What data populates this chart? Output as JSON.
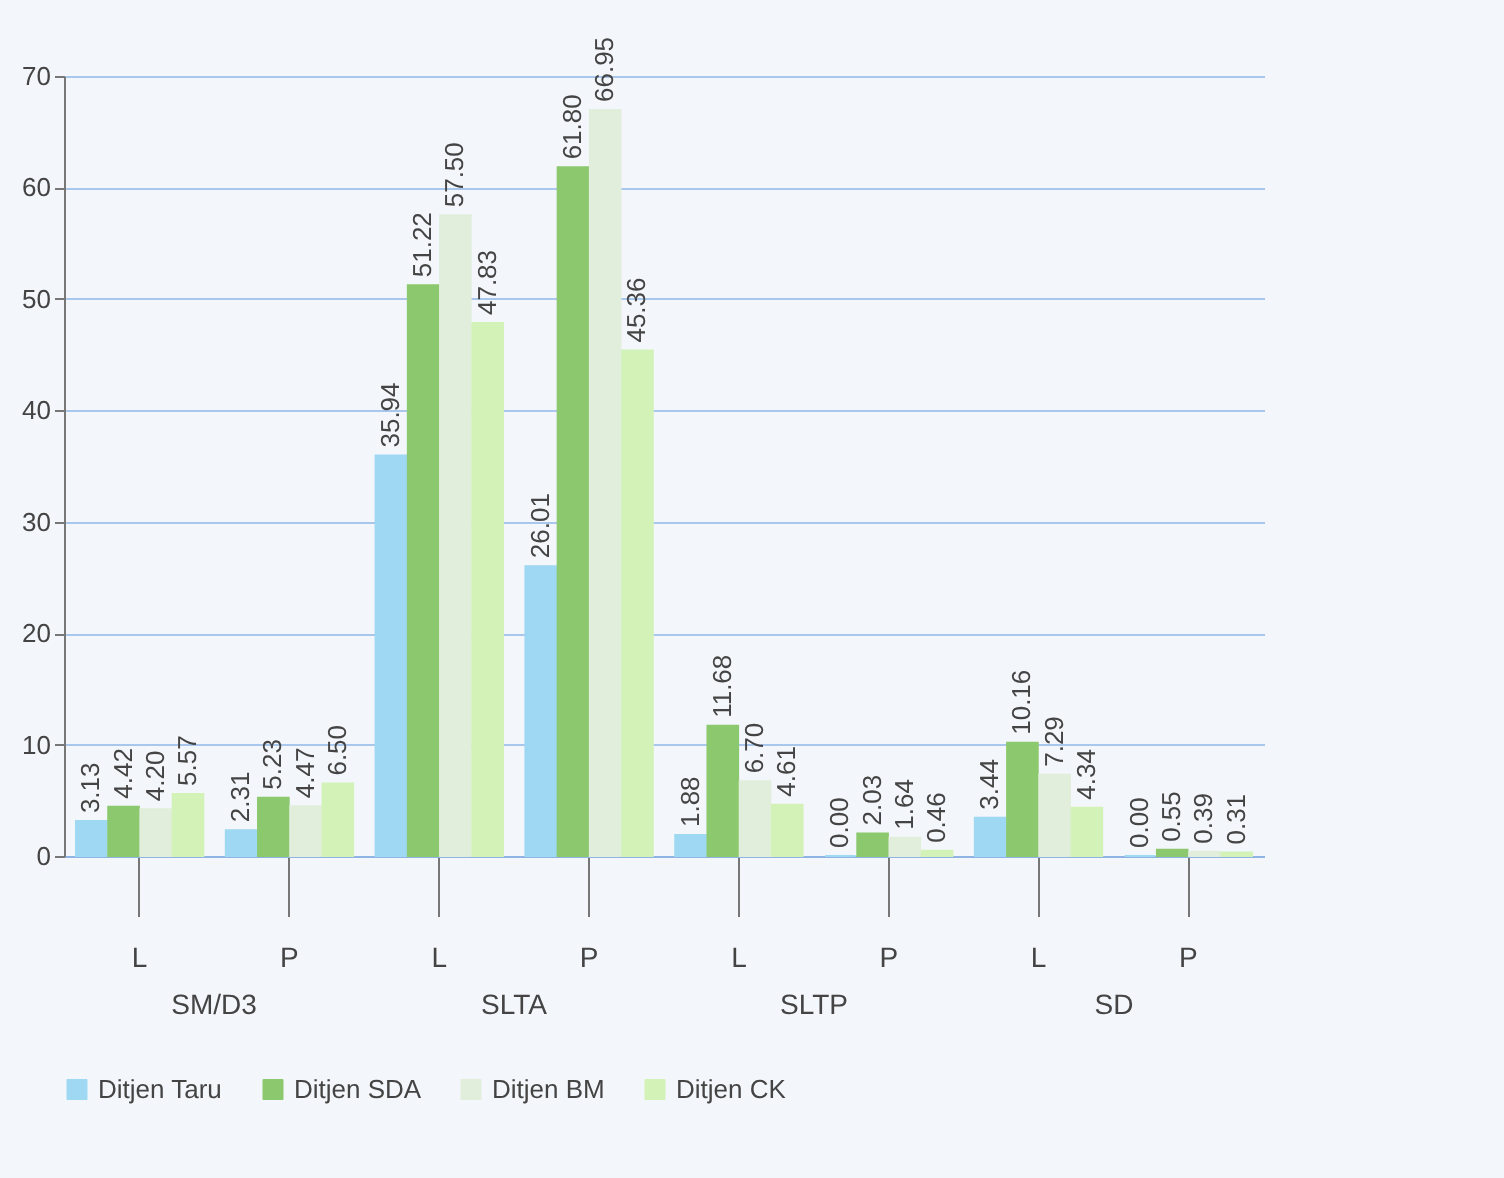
{
  "chart_data": {
    "type": "bar",
    "categories": [
      "L",
      "P",
      "L",
      "P",
      "L",
      "P",
      "L",
      "P"
    ],
    "annotations": [
      "SM/D3",
      "SLTA",
      "SLTP",
      "SD"
    ],
    "series": [
      {
        "name": "Ditjen Taru",
        "color": "#9fd8f2",
        "values": [
          3.13,
          2.31,
          35.94,
          26.01,
          1.88,
          0.0,
          3.44,
          0.0
        ],
        "value_labels": [
          "3.13",
          "2.31",
          "35.94",
          "26.01",
          "1.88",
          "0.00",
          "3.44",
          "0.00"
        ]
      },
      {
        "name": "Ditjen SDA",
        "color": "#8cc86e",
        "values": [
          4.42,
          5.23,
          51.22,
          61.8,
          11.68,
          2.03,
          10.16,
          0.55
        ],
        "value_labels": [
          "4.42",
          "5.23",
          "51.22",
          "61.80",
          "11.68",
          "2.03",
          "10.16",
          "0.55"
        ]
      },
      {
        "name": "Ditjen BM",
        "color": "#e2eedc",
        "values": [
          4.2,
          4.47,
          57.5,
          66.95,
          6.7,
          1.64,
          7.29,
          0.39
        ],
        "value_labels": [
          "4.20",
          "4.47",
          "57.50",
          "66.95",
          "6.70",
          "1.64",
          "7.29",
          "0.39"
        ]
      },
      {
        "name": "Ditjen CK",
        "color": "#d2f2b8",
        "values": [
          5.57,
          6.5,
          47.83,
          45.36,
          4.61,
          0.46,
          4.34,
          0.31
        ],
        "value_labels": [
          "5.57",
          "6.50",
          "47.83",
          "45.36",
          "4.61",
          "0.46",
          "4.34",
          "0.31"
        ]
      }
    ],
    "ylim": [
      0,
      70
    ],
    "yticks": [
      0,
      10,
      20,
      30,
      40,
      50,
      60,
      70
    ],
    "grid": "y",
    "legend": "bottom"
  }
}
